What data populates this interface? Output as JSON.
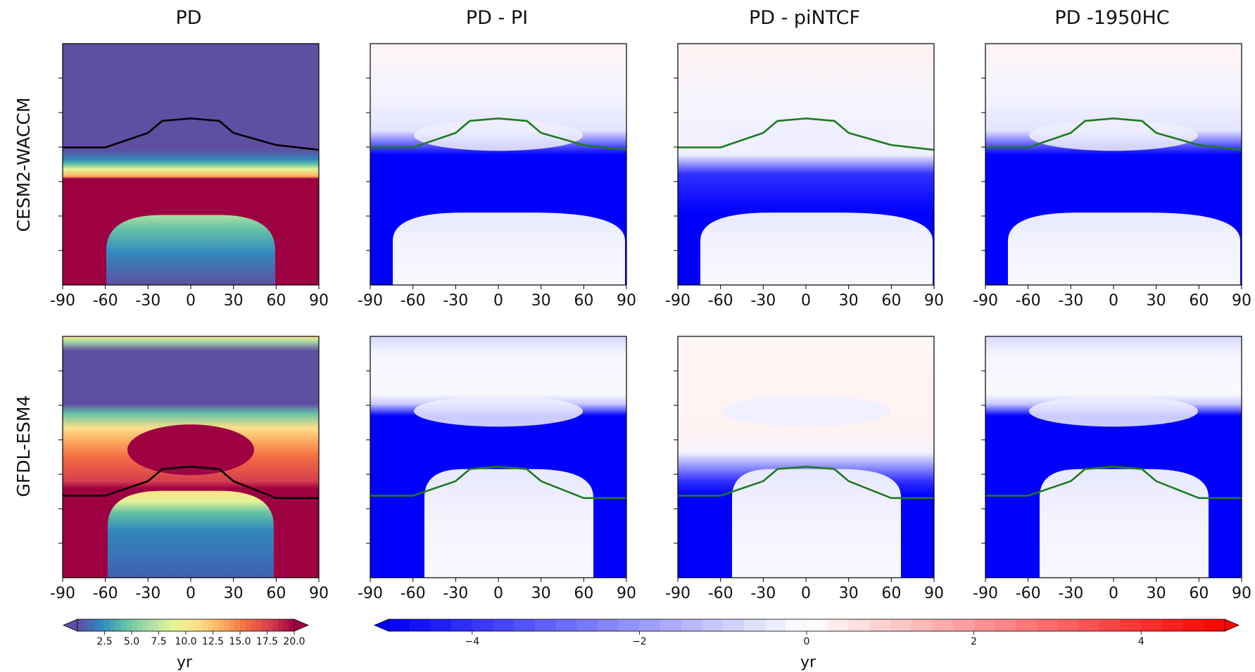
{
  "figure": {
    "column_titles": [
      "PD",
      "PD - PI",
      "PD - piNTCF",
      "PD -1950HC"
    ],
    "row_labels": [
      "CESM2-WACCM",
      "GFDL-ESM4"
    ],
    "x_tick_labels": [
      "-90",
      "-60",
      "-30",
      "0",
      "30",
      "60",
      "90"
    ],
    "colorbars": [
      {
        "label": "yr",
        "colormap": "Spectral_r",
        "tick_labels": [
          "2.5",
          "5.0",
          "7.5",
          "10.0",
          "12.5",
          "15.0",
          "17.5",
          "20.0"
        ],
        "range": [
          0,
          20
        ],
        "extend": "both",
        "colors": [
          "#5e4fa2",
          "#3288bd",
          "#66c2a5",
          "#abdda4",
          "#e6f598",
          "#fee08b",
          "#fdae61",
          "#f46d43",
          "#d53e4f",
          "#9e0142"
        ]
      },
      {
        "label": "yr",
        "colormap": "bwr",
        "tick_labels": [
          "−4",
          "−2",
          "0",
          "2",
          "4"
        ],
        "range": [
          -5,
          5
        ],
        "extend": "both",
        "colors": [
          "#0000ff",
          "#ffffff",
          "#ff0000"
        ]
      }
    ]
  },
  "chart_data": [
    {
      "type": "heatmap",
      "title": "PD",
      "row": "CESM2-WACCM",
      "x_range": [
        -90,
        90
      ],
      "colorbar": "yr (0-20)",
      "overlay_line_color": "#000000",
      "line_x": [
        -90,
        -60,
        -30,
        -20,
        0,
        20,
        30,
        60,
        90
      ],
      "line_level": [
        0.43,
        0.43,
        0.37,
        0.32,
        0.31,
        0.32,
        0.37,
        0.42,
        0.44
      ]
    },
    {
      "type": "heatmap",
      "title": "PD - PI",
      "row": "CESM2-WACCM",
      "x_range": [
        -90,
        90
      ],
      "colorbar": "yr (-5-5)",
      "overlay_line_color": "#1f7a1f",
      "line_x": [
        -90,
        -60,
        -30,
        -20,
        0,
        20,
        30,
        60,
        90
      ],
      "line_level": [
        0.43,
        0.43,
        0.37,
        0.32,
        0.31,
        0.32,
        0.37,
        0.42,
        0.44
      ]
    },
    {
      "type": "heatmap",
      "title": "PD - piNTCF",
      "row": "CESM2-WACCM",
      "x_range": [
        -90,
        90
      ],
      "colorbar": "yr (-5-5)",
      "overlay_line_color": "#1f7a1f",
      "line_x": [
        -90,
        -60,
        -30,
        -20,
        0,
        20,
        30,
        60,
        90
      ],
      "line_level": [
        0.43,
        0.43,
        0.37,
        0.32,
        0.31,
        0.32,
        0.37,
        0.42,
        0.44
      ]
    },
    {
      "type": "heatmap",
      "title": "PD -1950HC",
      "row": "CESM2-WACCM",
      "x_range": [
        -90,
        90
      ],
      "colorbar": "yr (-5-5)",
      "overlay_line_color": "#1f7a1f",
      "line_x": [
        -90,
        -60,
        -30,
        -20,
        0,
        20,
        30,
        60,
        90
      ],
      "line_level": [
        0.43,
        0.43,
        0.37,
        0.32,
        0.31,
        0.32,
        0.37,
        0.42,
        0.44
      ]
    },
    {
      "type": "heatmap",
      "title": "PD",
      "row": "GFDL-ESM4",
      "x_range": [
        -90,
        90
      ],
      "colorbar": "yr (0-20)",
      "overlay_line_color": "#000000",
      "line_x": [
        -90,
        -60,
        -30,
        -20,
        0,
        20,
        30,
        60,
        90
      ],
      "line_level": [
        0.66,
        0.66,
        0.6,
        0.55,
        0.54,
        0.55,
        0.6,
        0.67,
        0.67
      ]
    },
    {
      "type": "heatmap",
      "title": "PD - PI",
      "row": "GFDL-ESM4",
      "x_range": [
        -90,
        90
      ],
      "colorbar": "yr (-5-5)",
      "overlay_line_color": "#1f7a1f",
      "line_x": [
        -90,
        -60,
        -30,
        -20,
        0,
        20,
        30,
        60,
        90
      ],
      "line_level": [
        0.66,
        0.66,
        0.6,
        0.55,
        0.54,
        0.55,
        0.6,
        0.67,
        0.67
      ]
    },
    {
      "type": "heatmap",
      "title": "PD - piNTCF",
      "row": "GFDL-ESM4",
      "x_range": [
        -90,
        90
      ],
      "colorbar": "yr (-5-5)",
      "overlay_line_color": "#1f7a1f",
      "line_x": [
        -90,
        -60,
        -30,
        -20,
        0,
        20,
        30,
        60,
        90
      ],
      "line_level": [
        0.66,
        0.66,
        0.6,
        0.55,
        0.54,
        0.55,
        0.6,
        0.67,
        0.67
      ]
    },
    {
      "type": "heatmap",
      "title": "PD -1950HC",
      "row": "GFDL-ESM4",
      "x_range": [
        -90,
        90
      ],
      "colorbar": "yr (-5-5)",
      "overlay_line_color": "#1f7a1f",
      "line_x": [
        -90,
        -60,
        -30,
        -20,
        0,
        20,
        30,
        60,
        90
      ],
      "line_level": [
        0.66,
        0.66,
        0.6,
        0.55,
        0.54,
        0.55,
        0.6,
        0.67,
        0.67
      ]
    }
  ]
}
